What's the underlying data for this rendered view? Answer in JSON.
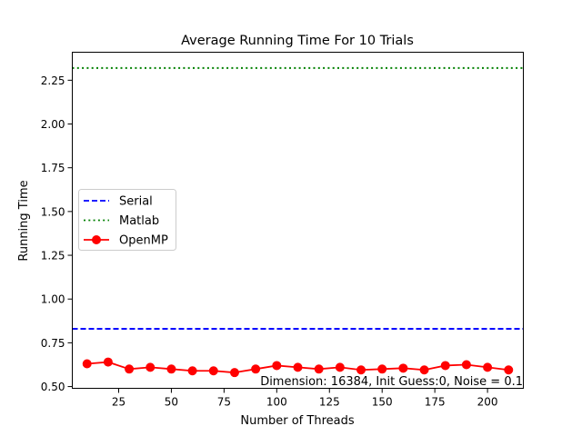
{
  "chart_data": {
    "type": "line",
    "title": "Average Running Time For 10 Trials",
    "xlabel": "Number of Threads",
    "ylabel": "Running Time",
    "xlim": [
      3,
      217
    ],
    "ylim": [
      0.49,
      2.41
    ],
    "xticks": [
      25,
      50,
      75,
      100,
      125,
      150,
      175,
      200
    ],
    "xtick_labels": [
      "25",
      "50",
      "75",
      "100",
      "125",
      "150",
      "175",
      "200"
    ],
    "yticks": [
      0.5,
      0.75,
      1.0,
      1.25,
      1.5,
      1.75,
      2.0,
      2.25
    ],
    "ytick_labels": [
      "0.50",
      "0.75",
      "1.00",
      "1.25",
      "1.50",
      "1.75",
      "2.00",
      "2.25"
    ],
    "grid": false,
    "legend_position": "center-left",
    "annotation": "Dimension: 16384, Init Guess:0, Noise = 0.1",
    "series": [
      {
        "name": "Serial",
        "style": "dashed",
        "color": "#0000ff",
        "y_constant": 0.83
      },
      {
        "name": "Matlab",
        "style": "dotted",
        "color": "#008000",
        "y_constant": 2.32
      },
      {
        "name": "OpenMP",
        "style": "solid-marker",
        "color": "#ff0000",
        "x": [
          10,
          20,
          30,
          40,
          50,
          60,
          70,
          80,
          90,
          100,
          110,
          120,
          130,
          140,
          150,
          160,
          170,
          180,
          190,
          200,
          210
        ],
        "values": [
          0.63,
          0.64,
          0.6,
          0.61,
          0.6,
          0.59,
          0.59,
          0.58,
          0.6,
          0.62,
          0.61,
          0.6,
          0.61,
          0.595,
          0.6,
          0.605,
          0.595,
          0.62,
          0.625,
          0.61,
          0.595
        ]
      }
    ]
  }
}
